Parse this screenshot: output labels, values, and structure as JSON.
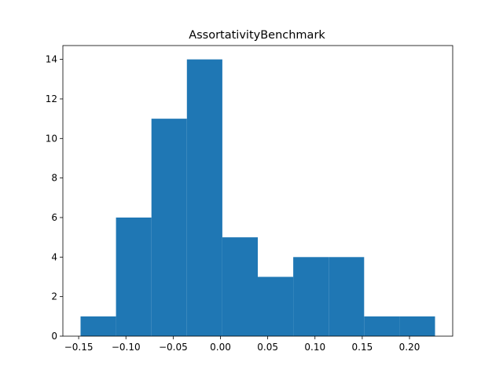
{
  "chart_data": {
    "type": "bar",
    "title": "AssortativityBenchmark",
    "xlabel": "",
    "ylabel": "",
    "bar_color": "#1f77b4",
    "bin_edges": [
      -0.148,
      -0.1105,
      -0.073,
      -0.0355,
      0.002,
      0.0395,
      0.077,
      0.1145,
      0.152,
      0.1895,
      0.227
    ],
    "counts": [
      1,
      6,
      11,
      14,
      5,
      3,
      4,
      4,
      1,
      1
    ],
    "xlim": [
      -0.1667,
      0.2457
    ],
    "ylim": [
      0,
      14.7
    ],
    "xticks": [
      -0.15,
      -0.1,
      -0.05,
      0.0,
      0.05,
      0.1,
      0.15,
      0.2
    ],
    "xtick_labels": [
      "−0.15",
      "−0.10",
      "−0.05",
      "0.00",
      "0.05",
      "0.10",
      "0.15",
      "0.20"
    ],
    "yticks": [
      0,
      2,
      4,
      6,
      8,
      10,
      12,
      14
    ],
    "ytick_labels": [
      "0",
      "2",
      "4",
      "6",
      "8",
      "10",
      "12",
      "14"
    ],
    "grid": false,
    "legend": "none"
  }
}
